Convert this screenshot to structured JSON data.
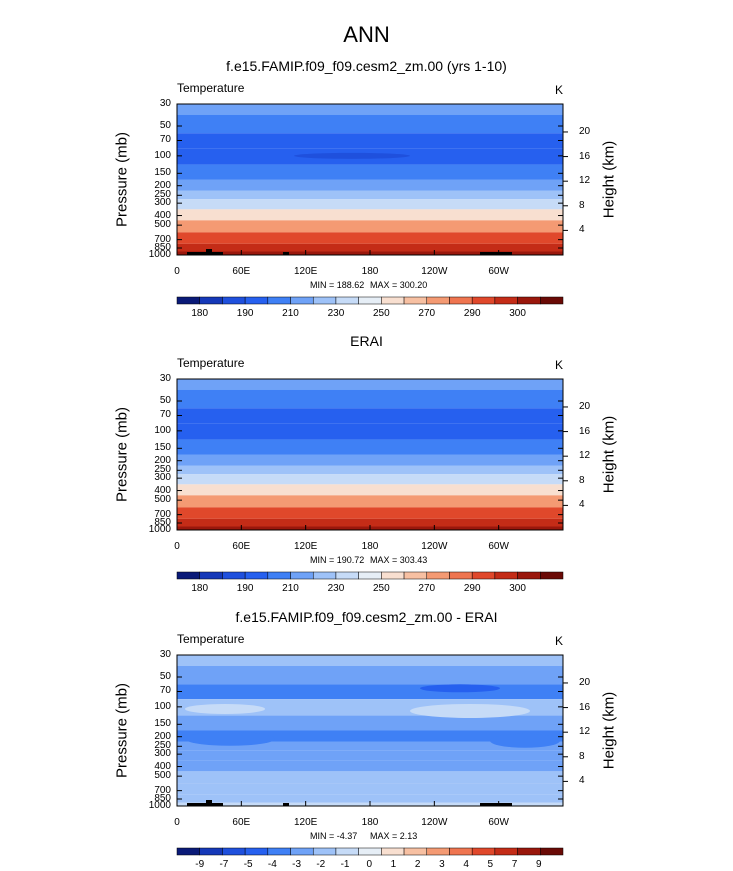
{
  "figure_title": "ANN",
  "colors": {
    "temp_palette": [
      "#0a1a78",
      "#1538b8",
      "#1f50dd",
      "#2660ef",
      "#3f80f5",
      "#6fa2f7",
      "#9ec2f8",
      "#c6dbf7",
      "#e6eef6",
      "#f8dfd0",
      "#f7c0a2",
      "#f49a73",
      "#ef7550",
      "#e0482b",
      "#c42c17",
      "#9a170c",
      "#6a0a06"
    ],
    "diff_palette": [
      "#0a1a78",
      "#1538b8",
      "#1f50dd",
      "#2660ef",
      "#3f80f5",
      "#6fa2f7",
      "#9ec2f8",
      "#c6dbf7",
      "#e6eef6",
      "#f8dfd0",
      "#f7c0a2",
      "#f49a73",
      "#ef7550",
      "#e0482b",
      "#c42c17",
      "#9a170c",
      "#6a0a06"
    ]
  },
  "chart_data": [
    {
      "type": "heatmap",
      "title": "f.e15.FAMIP.f09_f09.cesm2_zm.00 (yrs 1-10)",
      "left_label": "Temperature",
      "units": "K",
      "ylabel": "Pressure (mb)",
      "ylabel_right": "Height (km)",
      "x_ticks": [
        "0",
        "60E",
        "120E",
        "180",
        "120W",
        "60W"
      ],
      "y_ticks": [
        "30",
        "50",
        "70",
        "100",
        "150",
        "200",
        "250",
        "300",
        "400",
        "500",
        "700",
        "850",
        "1000"
      ],
      "y_ticks_right": [
        "20",
        "16",
        "12",
        "8",
        "4"
      ],
      "min_label": "MIN = 188.62",
      "max_label": "MAX = 300.20",
      "colorbar_labels": [
        "180",
        "190",
        "210",
        "230",
        "250",
        "270",
        "290",
        "300"
      ],
      "profile_levels": [
        {
          "p": 30,
          "bin": 5
        },
        {
          "p": 50,
          "bin": 4
        },
        {
          "p": 70,
          "bin": 3
        },
        {
          "p": 100,
          "bin": 3
        },
        {
          "p": 150,
          "bin": 4
        },
        {
          "p": 200,
          "bin": 5
        },
        {
          "p": 250,
          "bin": 6
        },
        {
          "p": 300,
          "bin": 7
        },
        {
          "p": 400,
          "bin": 9
        },
        {
          "p": 500,
          "bin": 11
        },
        {
          "p": 700,
          "bin": 13
        },
        {
          "p": 850,
          "bin": 14
        },
        {
          "p": 1000,
          "bin": 15
        }
      ]
    },
    {
      "type": "heatmap",
      "title": "ERAI",
      "left_label": "Temperature",
      "units": "K",
      "ylabel": "Pressure (mb)",
      "ylabel_right": "Height (km)",
      "x_ticks": [
        "0",
        "60E",
        "120E",
        "180",
        "120W",
        "60W"
      ],
      "y_ticks": [
        "30",
        "50",
        "70",
        "100",
        "150",
        "200",
        "250",
        "300",
        "400",
        "500",
        "700",
        "850",
        "1000"
      ],
      "y_ticks_right": [
        "20",
        "16",
        "12",
        "8",
        "4"
      ],
      "min_label": "MIN = 190.72",
      "max_label": "MAX = 303.43",
      "colorbar_labels": [
        "180",
        "190",
        "210",
        "230",
        "250",
        "270",
        "290",
        "300"
      ],
      "profile_levels": [
        {
          "p": 30,
          "bin": 5
        },
        {
          "p": 50,
          "bin": 4
        },
        {
          "p": 70,
          "bin": 3
        },
        {
          "p": 100,
          "bin": 3
        },
        {
          "p": 150,
          "bin": 4
        },
        {
          "p": 200,
          "bin": 5
        },
        {
          "p": 250,
          "bin": 6
        },
        {
          "p": 300,
          "bin": 7
        },
        {
          "p": 400,
          "bin": 9
        },
        {
          "p": 500,
          "bin": 11
        },
        {
          "p": 700,
          "bin": 13
        },
        {
          "p": 850,
          "bin": 14
        },
        {
          "p": 1000,
          "bin": 15
        }
      ]
    },
    {
      "type": "heatmap",
      "title": "f.e15.FAMIP.f09_f09.cesm2_zm.00 - ERAI",
      "left_label": "Temperature",
      "units": "K",
      "ylabel": "Pressure (mb)",
      "ylabel_right": "Height (km)",
      "x_ticks": [
        "0",
        "60E",
        "120E",
        "180",
        "120W",
        "60W"
      ],
      "y_ticks": [
        "30",
        "50",
        "70",
        "100",
        "150",
        "200",
        "250",
        "300",
        "400",
        "500",
        "700",
        "850",
        "1000"
      ],
      "y_ticks_right": [
        "20",
        "16",
        "12",
        "8",
        "4"
      ],
      "min_label": "MIN = -4.37",
      "max_label": "MAX = 2.13",
      "colorbar_labels": [
        "-9",
        "-7",
        "-5",
        "-4",
        "-3",
        "-2",
        "-1",
        "0",
        "1",
        "2",
        "3",
        "4",
        "5",
        "7",
        "9"
      ],
      "profile_levels": [
        {
          "p": 30,
          "bin": 6
        },
        {
          "p": 50,
          "bin": 5
        },
        {
          "p": 70,
          "bin": 4
        },
        {
          "p": 100,
          "bin": 6
        },
        {
          "p": 150,
          "bin": 5
        },
        {
          "p": 200,
          "bin": 4
        },
        {
          "p": 250,
          "bin": 5
        },
        {
          "p": 300,
          "bin": 5
        },
        {
          "p": 400,
          "bin": 5
        },
        {
          "p": 500,
          "bin": 6
        },
        {
          "p": 700,
          "bin": 6
        },
        {
          "p": 850,
          "bin": 6
        },
        {
          "p": 1000,
          "bin": 7
        }
      ]
    }
  ]
}
